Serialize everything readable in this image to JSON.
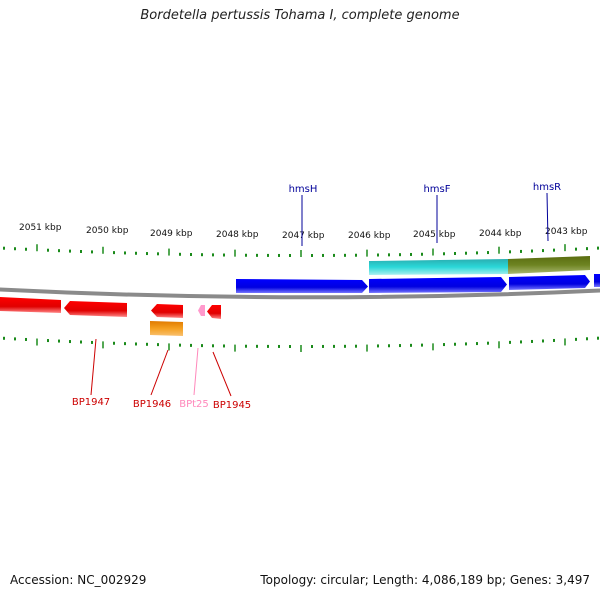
{
  "title": "Bordetella pertussis Tohama I, complete genome",
  "footer": {
    "accession": "Accession: NC_002929",
    "topology": "Topology: circular; Length: 4,086,189 bp; Genes: 3,497"
  },
  "ruler": {
    "labels": [
      "2051 kbp",
      "2050 kbp",
      "2049 kbp",
      "2048 kbp",
      "2047 kbp",
      "2046 kbp",
      "2045 kbp",
      "2044 kbp",
      "2043 kbp"
    ]
  },
  "gene_labels_top": [
    "hmsH",
    "hmsF",
    "hmsR"
  ],
  "gene_labels_bottom": [
    "BP1947",
    "BP1946",
    "BPt25",
    "BP1945"
  ],
  "colors": {
    "cds_forward": "#0000ee",
    "cds_reverse": "#ee0000",
    "cds_cyan": "#20d0d0",
    "cds_olive": "#6b7d20",
    "cds_orange": "#f08a00",
    "trna_pink": "#ff99cc",
    "tick_green": "#1a8a1a",
    "label_blue": "#000099",
    "label_red": "#cc0000",
    "label_pink": "#ff88bb"
  }
}
